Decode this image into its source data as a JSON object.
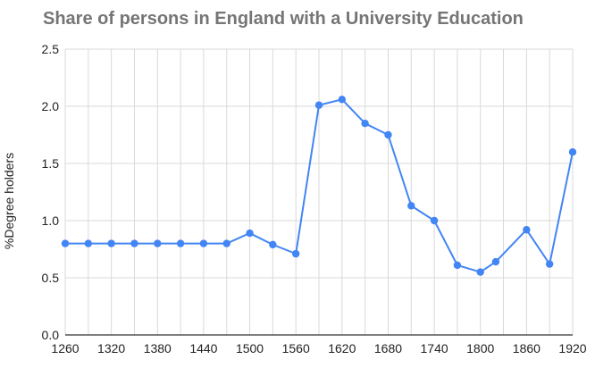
{
  "chart_data": {
    "type": "line",
    "title": "Share of persons in England with a University Education",
    "xlabel": "",
    "ylabel": "%Degree holders",
    "xlim": [
      1260,
      1920
    ],
    "ylim": [
      0,
      2.5
    ],
    "x_ticks": [
      1260,
      1320,
      1380,
      1440,
      1500,
      1560,
      1620,
      1680,
      1740,
      1800,
      1860,
      1920
    ],
    "y_ticks": [
      0.0,
      0.5,
      1.0,
      1.5,
      2.0,
      2.5
    ],
    "y_tick_labels": [
      "0.0",
      "0.5",
      "1.0",
      "1.5",
      "2.0",
      "2.5"
    ],
    "grid": true,
    "legend": "none",
    "color": "#4285f4",
    "series": [
      {
        "x": [
          1260,
          1290,
          1320,
          1350,
          1380,
          1410,
          1440,
          1470,
          1500,
          1530,
          1560,
          1590,
          1620,
          1650,
          1680,
          1710,
          1740,
          1770,
          1800,
          1820,
          1860,
          1890,
          1920
        ],
        "values": [
          0.8,
          0.8,
          0.8,
          0.8,
          0.8,
          0.8,
          0.8,
          0.8,
          0.89,
          0.79,
          0.71,
          2.01,
          2.06,
          1.85,
          1.75,
          1.13,
          1.0,
          0.61,
          0.55,
          0.64,
          0.92,
          0.62,
          1.6
        ]
      }
    ]
  }
}
